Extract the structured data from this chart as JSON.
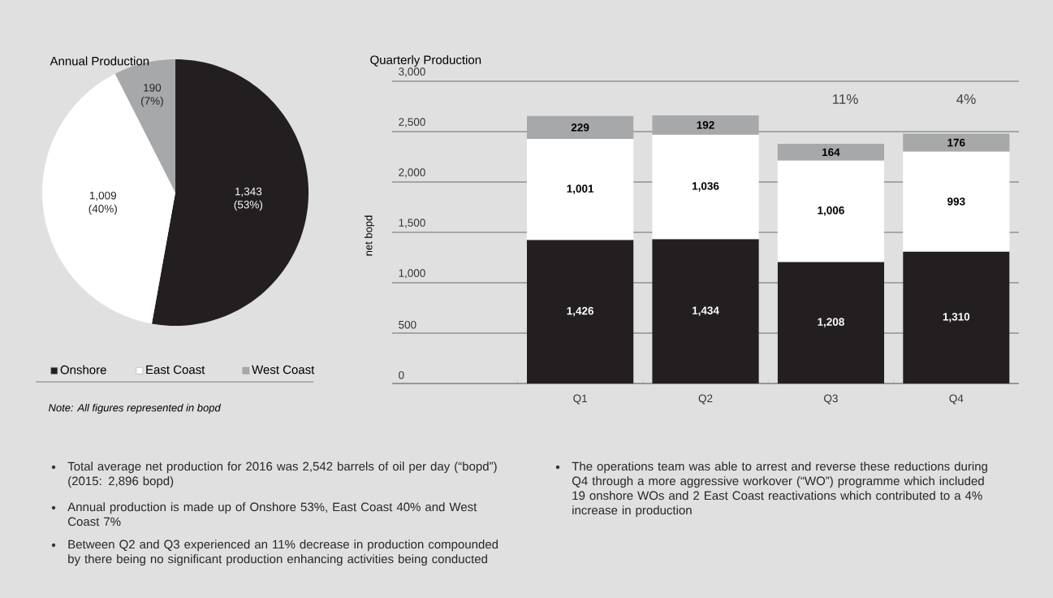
{
  "chart_data": [
    {
      "type": "pie",
      "title": "Annual Production",
      "categories": [
        "Onshore",
        "East Coast",
        "West Coast"
      ],
      "values": [
        1343,
        1009,
        190
      ],
      "colors": [
        "#231f20",
        "#ffffff",
        "#a7a8aa"
      ],
      "value_labels": [
        "1,343 (53%)",
        "1,009 (40%)",
        "190 (7%)"
      ],
      "legend": "bottom",
      "annotations": [
        "*Note: All figures represented in bopd*"
      ]
    },
    {
      "type": "bar",
      "title": "Quarterly Production",
      "ylabel": "net bopd",
      "categories": [
        null,
        "Q1",
        "Q2",
        "Q3",
        "Q4"
      ],
      "stacked": true,
      "series": [
        {
          "color": "#231f20",
          "values": [
            null,
            1426,
            1434,
            1208,
            1310
          ],
          "value_labels": [
            null,
            "1,426",
            "1,434",
            "1,208",
            "1,310"
          ]
        },
        {
          "color": "#ffffff",
          "values": [
            null,
            1001,
            1036,
            1006,
            993
          ],
          "value_labels": [
            null,
            "1,001",
            "1,036",
            "1,006",
            "993"
          ]
        },
        {
          "color": "#a7a8aa",
          "values": [
            null,
            229,
            192,
            164,
            176
          ],
          "value_labels": [
            null,
            "229",
            "192",
            "164",
            "176"
          ]
        }
      ],
      "ylim": [
        0,
        3000
      ],
      "yticks": [
        {
          "value": 0,
          "label": "0"
        },
        {
          "value": 500,
          "label": "500"
        },
        {
          "value": 1000,
          "label": "1,000"
        },
        {
          "value": 1500,
          "label": "1,500"
        },
        {
          "value": 2000,
          "label": "2,000"
        },
        {
          "value": 2500,
          "label": "2,500"
        },
        {
          "value": 3000,
          "label": "3,000"
        }
      ],
      "grid": "y",
      "annotations": [
        "11%",
        "4%"
      ]
    },
    {
      "type": "other",
      "annotations": [
        "Total average net production for 2016 was 2,542 barrels of oil per day (“bopd”) (2015: 2,896 bopd)",
        "Annual production is made up of Onshore 53%, East Coast 40% and West Coast 7%",
        "Between Q2 and Q3 experienced an 11% decrease in production compounded by there being no significant production enhancing activities being conducted",
        "The operations team was able to arrest and reverse these reductions during Q4 through a more aggressive workover (“WO”) programme which included 19 onshore WOs and 2 East Coast reactivations which contributed to a 4% increase in production"
      ]
    }
  ]
}
